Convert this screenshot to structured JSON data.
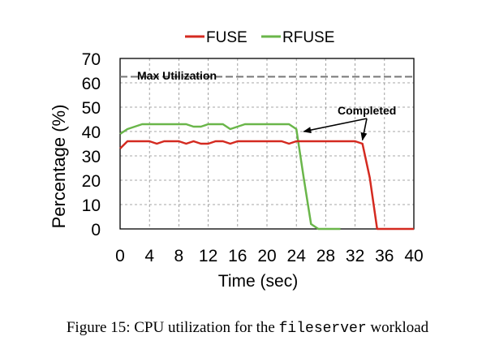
{
  "colors": {
    "fuse": "#d42a20",
    "rfuse": "#6ab64a",
    "max_line": "#777777",
    "grid": "#8a8a8a"
  },
  "chart_data": {
    "type": "line",
    "xlabel": "Time (sec)",
    "ylabel": "Percentage (%)",
    "xlim": [
      0,
      40
    ],
    "ylim": [
      0,
      70
    ],
    "xticks": [
      0,
      4,
      8,
      12,
      16,
      20,
      24,
      28,
      32,
      36,
      40
    ],
    "yticks": [
      0,
      10,
      20,
      30,
      40,
      50,
      60,
      70
    ],
    "grid": true,
    "legend": "top-center",
    "series": [
      {
        "name": "FUSE",
        "color": "#d42a20",
        "x": [
          0,
          1,
          2,
          3,
          4,
          5,
          6,
          7,
          8,
          9,
          10,
          11,
          12,
          13,
          14,
          15,
          16,
          17,
          18,
          19,
          20,
          21,
          22,
          23,
          24,
          25,
          26,
          27,
          28,
          29,
          30,
          31,
          32,
          33,
          34,
          35,
          36,
          37,
          38,
          39,
          40
        ],
        "y": [
          33,
          36,
          36,
          36,
          36,
          35,
          36,
          36,
          36,
          35,
          36,
          35,
          35,
          36,
          36,
          35,
          36,
          36,
          36,
          36,
          36,
          36,
          36,
          35,
          36,
          36,
          36,
          36,
          36,
          36,
          36,
          36,
          36,
          35,
          21,
          0,
          0,
          0,
          0,
          0,
          0
        ]
      },
      {
        "name": "RFUSE",
        "color": "#6ab64a",
        "x": [
          0,
          1,
          2,
          3,
          4,
          5,
          6,
          7,
          8,
          9,
          10,
          11,
          12,
          13,
          14,
          15,
          16,
          17,
          18,
          19,
          20,
          21,
          22,
          23,
          24,
          25,
          26,
          27,
          28,
          29,
          30
        ],
        "y": [
          39,
          41,
          42,
          43,
          43,
          43,
          43,
          43,
          43,
          43,
          42,
          42,
          43,
          43,
          43,
          41,
          42,
          43,
          43,
          43,
          43,
          43,
          43,
          43,
          41,
          21,
          2,
          0,
          0,
          0,
          0
        ]
      }
    ],
    "reference_line": {
      "label": "Max Utilization",
      "y": 62.5
    },
    "annotations": [
      {
        "text": "Completed",
        "points_to": [
          [
            25,
            40
          ],
          [
            33,
            36.5
          ]
        ]
      }
    ]
  },
  "caption": {
    "prefix": "Figure 15:  CPU utilization for the ",
    "code": "fileserver",
    "suffix": " workload"
  }
}
